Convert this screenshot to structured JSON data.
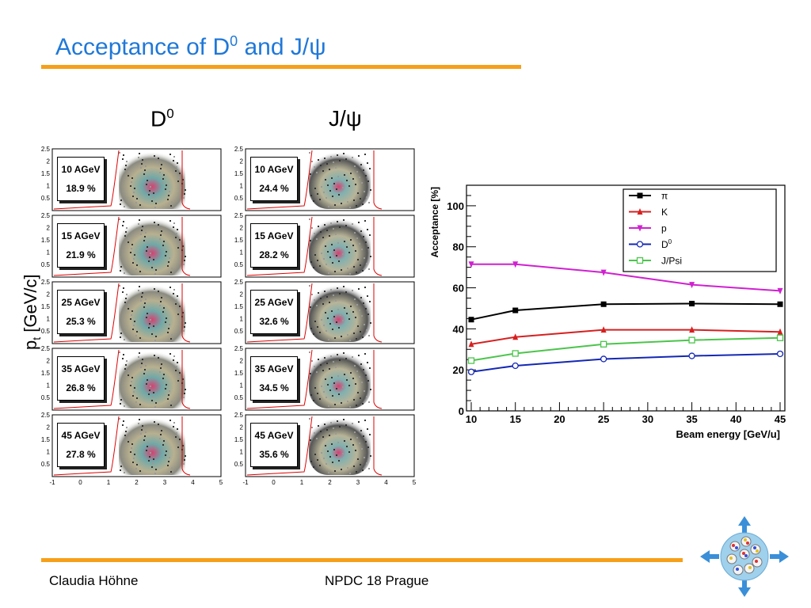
{
  "slide": {
    "title_main": "Acceptance of D",
    "title_sup": "0",
    "title_end": " and J/ψ",
    "d0_head": "D",
    "d0_head_sup": "0",
    "jpsi_head": "J/ψ",
    "y_axis_label": "p",
    "y_axis_sub": "t",
    "y_axis_unit": " [GeV/c]",
    "footer_author": "Claudia Höhne",
    "footer_event": "NPDC 18 Prague"
  },
  "panels": {
    "y_ticks": [
      "2.5",
      "2",
      "1.5",
      "1",
      "0.5"
    ],
    "x_ticks": [
      "-1",
      "0",
      "1",
      "2",
      "3",
      "4",
      "5"
    ],
    "d0": [
      {
        "energy": "10 AGeV",
        "acceptance": "18.9 %"
      },
      {
        "energy": "15 AGeV",
        "acceptance": "21.9 %"
      },
      {
        "energy": "25 AGeV",
        "acceptance": "25.3 %"
      },
      {
        "energy": "35 AGeV",
        "acceptance": "26.8 %"
      },
      {
        "energy": "45 AGeV",
        "acceptance": "27.8 %"
      }
    ],
    "jpsi": [
      {
        "energy": "10 AGeV",
        "acceptance": "24.4 %"
      },
      {
        "energy": "15 AGeV",
        "acceptance": "28.2 %"
      },
      {
        "energy": "25 AGeV",
        "acceptance": "32.6 %"
      },
      {
        "energy": "35 AGeV",
        "acceptance": "34.5 %"
      },
      {
        "energy": "45 AGeV",
        "acceptance": "35.6 %"
      }
    ]
  },
  "chart_data": {
    "type": "line",
    "xlabel": "Beam energy [GeV/u]",
    "ylabel": "Acceptance [%]",
    "xlim": [
      10,
      45
    ],
    "ylim": [
      0,
      110
    ],
    "x_ticks": [
      10,
      15,
      20,
      25,
      30,
      35,
      40,
      45
    ],
    "y_ticks": [
      0,
      20,
      40,
      60,
      80,
      100
    ],
    "legend_position": "top-right",
    "x": [
      10,
      15,
      25,
      35,
      45
    ],
    "series": [
      {
        "name": "π",
        "color": "#000000",
        "marker": "square",
        "values": [
          44.5,
          49,
          52,
          52.3,
          52
        ]
      },
      {
        "name": "K",
        "color": "#d62020",
        "marker": "triangle-up",
        "values": [
          32.5,
          36,
          39.5,
          39.5,
          38.5
        ]
      },
      {
        "name": "p",
        "color": "#d020d0",
        "marker": "triangle-down",
        "values": [
          71.5,
          71.5,
          67.5,
          61.5,
          58.5
        ]
      },
      {
        "name": "D",
        "name_sup": "0",
        "color": "#1428b4",
        "marker": "open-circle",
        "values": [
          19,
          22,
          25.3,
          26.8,
          27.8
        ]
      },
      {
        "name": "J/Psi",
        "color": "#4cc44c",
        "marker": "open-square",
        "values": [
          24.5,
          28,
          32.5,
          34.5,
          35.6
        ]
      }
    ]
  }
}
